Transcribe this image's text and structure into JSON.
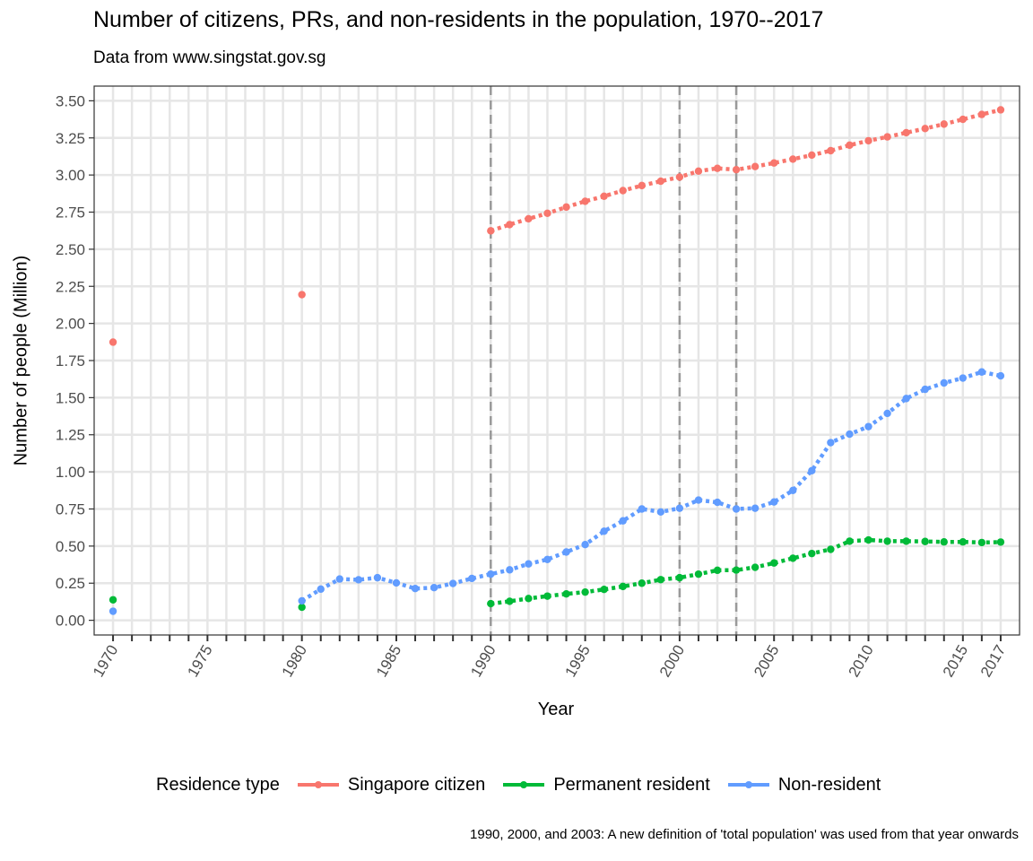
{
  "chart_data": {
    "type": "line",
    "title": "Number of citizens, PRs, and non-residents in the population, 1970--2017",
    "subtitle": "Data from www.singstat.gov.sg",
    "xlabel": "Year",
    "ylabel": "Number of people (Million)",
    "caption": "1990, 2000, and 2003: A new definition of 'total population' was used from that year onwards",
    "xlim": [
      1969,
      2018
    ],
    "ylim": [
      -0.1,
      3.6
    ],
    "x_ticks": [
      1970,
      1975,
      1980,
      1985,
      1990,
      1995,
      2000,
      2005,
      2010,
      2015,
      2017
    ],
    "y_ticks": [
      0,
      0.25,
      0.5,
      0.75,
      1,
      1.25,
      1.5,
      1.75,
      2,
      2.25,
      2.5,
      2.75,
      3,
      3.25,
      3.5
    ],
    "grid": true,
    "legend_position": "bottom",
    "legend_title": "Residence type",
    "vlines": [
      1990,
      2000,
      2003
    ],
    "series": [
      {
        "name": "Singapore citizen",
        "color": "#F8766D",
        "points": [
          [
            1970,
            1.874
          ],
          [
            1980,
            2.194
          ]
        ],
        "line": [
          [
            1990,
            2.624
          ],
          [
            1991,
            2.666
          ],
          [
            1992,
            2.705
          ],
          [
            1993,
            2.742
          ],
          [
            1994,
            2.784
          ],
          [
            1995,
            2.823
          ],
          [
            1996,
            2.857
          ],
          [
            1997,
            2.895
          ],
          [
            1998,
            2.929
          ],
          [
            1999,
            2.958
          ],
          [
            2000,
            2.986
          ],
          [
            2001,
            3.026
          ],
          [
            2002,
            3.045
          ],
          [
            2003,
            3.036
          ],
          [
            2004,
            3.057
          ],
          [
            2005,
            3.081
          ],
          [
            2006,
            3.107
          ],
          [
            2007,
            3.134
          ],
          [
            2008,
            3.164
          ],
          [
            2009,
            3.201
          ],
          [
            2010,
            3.231
          ],
          [
            2011,
            3.257
          ],
          [
            2012,
            3.285
          ],
          [
            2013,
            3.313
          ],
          [
            2014,
            3.343
          ],
          [
            2015,
            3.375
          ],
          [
            2016,
            3.408
          ],
          [
            2017,
            3.439
          ]
        ]
      },
      {
        "name": "Permanent resident",
        "color": "#00BA38",
        "points": [
          [
            1970,
            0.138
          ],
          [
            1980,
            0.088
          ]
        ],
        "line": [
          [
            1990,
            0.112
          ],
          [
            1991,
            0.128
          ],
          [
            1992,
            0.147
          ],
          [
            1993,
            0.163
          ],
          [
            1994,
            0.178
          ],
          [
            1995,
            0.19
          ],
          [
            1996,
            0.208
          ],
          [
            1997,
            0.228
          ],
          [
            1998,
            0.25
          ],
          [
            1999,
            0.274
          ],
          [
            2000,
            0.287
          ],
          [
            2001,
            0.311
          ],
          [
            2002,
            0.337
          ],
          [
            2003,
            0.338
          ],
          [
            2004,
            0.357
          ],
          [
            2005,
            0.386
          ],
          [
            2006,
            0.418
          ],
          [
            2007,
            0.45
          ],
          [
            2008,
            0.478
          ],
          [
            2009,
            0.533
          ],
          [
            2010,
            0.541
          ],
          [
            2011,
            0.533
          ],
          [
            2012,
            0.533
          ],
          [
            2013,
            0.531
          ],
          [
            2014,
            0.528
          ],
          [
            2015,
            0.528
          ],
          [
            2016,
            0.524
          ],
          [
            2017,
            0.527
          ]
        ]
      },
      {
        "name": "Non-resident",
        "color": "#619CFF",
        "points": [
          [
            1970,
            0.061
          ]
        ],
        "line": [
          [
            1980,
            0.131
          ],
          [
            1981,
            0.21
          ],
          [
            1982,
            0.278
          ],
          [
            1983,
            0.273
          ],
          [
            1984,
            0.287
          ],
          [
            1985,
            0.252
          ],
          [
            1986,
            0.214
          ],
          [
            1987,
            0.22
          ],
          [
            1988,
            0.248
          ],
          [
            1989,
            0.282
          ],
          [
            1990,
            0.311
          ],
          [
            1991,
            0.34
          ],
          [
            1992,
            0.38
          ],
          [
            1993,
            0.41
          ],
          [
            1994,
            0.46
          ],
          [
            1995,
            0.51
          ],
          [
            1996,
            0.6
          ],
          [
            1997,
            0.67
          ],
          [
            1998,
            0.75
          ],
          [
            1999,
            0.73
          ],
          [
            2000,
            0.755
          ],
          [
            2001,
            0.81
          ],
          [
            2002,
            0.795
          ],
          [
            2003,
            0.75
          ],
          [
            2004,
            0.755
          ],
          [
            2005,
            0.797
          ],
          [
            2006,
            0.875
          ],
          [
            2007,
            1.008
          ],
          [
            2008,
            1.197
          ],
          [
            2009,
            1.254
          ],
          [
            2010,
            1.305
          ],
          [
            2011,
            1.394
          ],
          [
            2012,
            1.494
          ],
          [
            2013,
            1.556
          ],
          [
            2014,
            1.599
          ],
          [
            2015,
            1.632
          ],
          [
            2016,
            1.673
          ],
          [
            2017,
            1.647
          ]
        ]
      }
    ]
  }
}
